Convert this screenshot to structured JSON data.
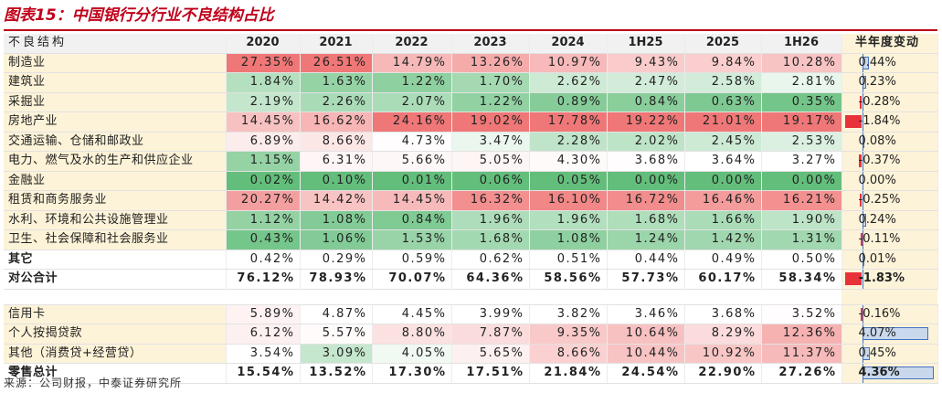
{
  "title": "图表15：中国银行分行业不良结构占比",
  "source": "来源：公司财报，中泰证券研究所",
  "columns": [
    "不良结构",
    "2020",
    "2021",
    "2022",
    "2023",
    "2024",
    "1H25",
    "2025",
    "1H26",
    "半年度变动"
  ],
  "rows": [
    {
      "label": "制造业",
      "values": [
        "27.35%",
        "26.51%",
        "14.79%",
        "13.26%",
        "10.97%",
        "9.43%",
        "9.84%",
        "10.28%"
      ],
      "change": "0.44%",
      "change_value": 0.44
    },
    {
      "label": "建筑业",
      "values": [
        "1.84%",
        "1.63%",
        "1.22%",
        "1.70%",
        "2.62%",
        "2.47%",
        "2.58%",
        "2.81%"
      ],
      "change": "0.23%",
      "change_value": 0.23
    },
    {
      "label": "采掘业",
      "values": [
        "2.19%",
        "2.26%",
        "2.07%",
        "1.22%",
        "0.89%",
        "0.84%",
        "0.63%",
        "0.35%"
      ],
      "change": "-0.28%",
      "change_value": -0.28
    },
    {
      "label": "房地产业",
      "values": [
        "14.45%",
        "16.62%",
        "24.16%",
        "19.02%",
        "17.78%",
        "19.22%",
        "21.01%",
        "19.17%"
      ],
      "change": "-1.84%",
      "change_value": -1.84
    },
    {
      "label": "交通运输、仓储和邮政业",
      "values": [
        "6.89%",
        "8.66%",
        "4.73%",
        "3.47%",
        "2.28%",
        "2.02%",
        "2.45%",
        "2.53%"
      ],
      "change": "0.08%",
      "change_value": 0.08
    },
    {
      "label": "电力、燃气及水的生产和供应企业",
      "values": [
        "1.15%",
        "6.31%",
        "5.66%",
        "5.05%",
        "4.30%",
        "3.68%",
        "3.64%",
        "3.27%"
      ],
      "change": "-0.37%",
      "change_value": -0.37
    },
    {
      "label": "金融业",
      "values": [
        "0.02%",
        "0.10%",
        "0.01%",
        "0.06%",
        "0.05%",
        "0.00%",
        "0.00%",
        "0.00%"
      ],
      "change": "0.00%",
      "change_value": 0.0
    },
    {
      "label": "租赁和商务服务业",
      "values": [
        "20.27%",
        "14.42%",
        "14.45%",
        "16.32%",
        "16.10%",
        "16.72%",
        "16.46%",
        "16.21%"
      ],
      "change": "-0.25%",
      "change_value": -0.25
    },
    {
      "label": "水利、环境和公共设施管理业",
      "values": [
        "1.12%",
        "1.08%",
        "0.84%",
        "1.96%",
        "1.96%",
        "1.68%",
        "1.66%",
        "1.90%"
      ],
      "change": "0.24%",
      "change_value": 0.24
    },
    {
      "label": "卫生、社会保障和社会服务业",
      "values": [
        "0.43%",
        "1.06%",
        "1.53%",
        "1.68%",
        "1.08%",
        "1.24%",
        "1.42%",
        "1.31%"
      ],
      "change": "-0.11%",
      "change_value": -0.11
    },
    {
      "label": "其它",
      "values": [
        "0.42%",
        "0.29%",
        "0.59%",
        "0.62%",
        "0.51%",
        "0.44%",
        "0.49%",
        "0.50%"
      ],
      "change": "0.01%",
      "change_value": 0.01,
      "style": "plain"
    },
    {
      "label": "对公合计",
      "values": [
        "76.12%",
        "78.93%",
        "70.07%",
        "64.36%",
        "58.56%",
        "57.73%",
        "60.17%",
        "58.34%"
      ],
      "change": "-1.83%",
      "change_value": -1.83,
      "style": "total"
    },
    {
      "spacer": true
    },
    {
      "label": "信用卡",
      "values": [
        "5.89%",
        "4.87%",
        "4.45%",
        "3.99%",
        "3.82%",
        "3.46%",
        "3.68%",
        "3.52%"
      ],
      "change": "-0.16%",
      "change_value": -0.16
    },
    {
      "label": "个人按揭贷款",
      "values": [
        "6.12%",
        "5.57%",
        "8.80%",
        "7.87%",
        "9.35%",
        "10.64%",
        "8.29%",
        "12.36%"
      ],
      "change": "4.07%",
      "change_value": 4.07
    },
    {
      "label": "其他（消费贷+经营贷）",
      "values": [
        "3.54%",
        "3.09%",
        "4.05%",
        "5.65%",
        "8.66%",
        "10.44%",
        "10.92%",
        "11.37%"
      ],
      "change": "0.45%",
      "change_value": 0.45
    },
    {
      "label": "零售总计",
      "values": [
        "15.54%",
        "13.52%",
        "17.30%",
        "17.51%",
        "21.84%",
        "24.54%",
        "22.90%",
        "27.26%"
      ],
      "change": "4.36%",
      "change_value": 4.36,
      "style": "total"
    }
  ],
  "colors": {
    "title": "#c0001a",
    "high": "#f07777",
    "low": "#63be7b",
    "neutral": "#ffffff",
    "positive_bar": "#4472c4",
    "negative_bar": "#e8323a",
    "label_bg": "#fdf3d8"
  }
}
